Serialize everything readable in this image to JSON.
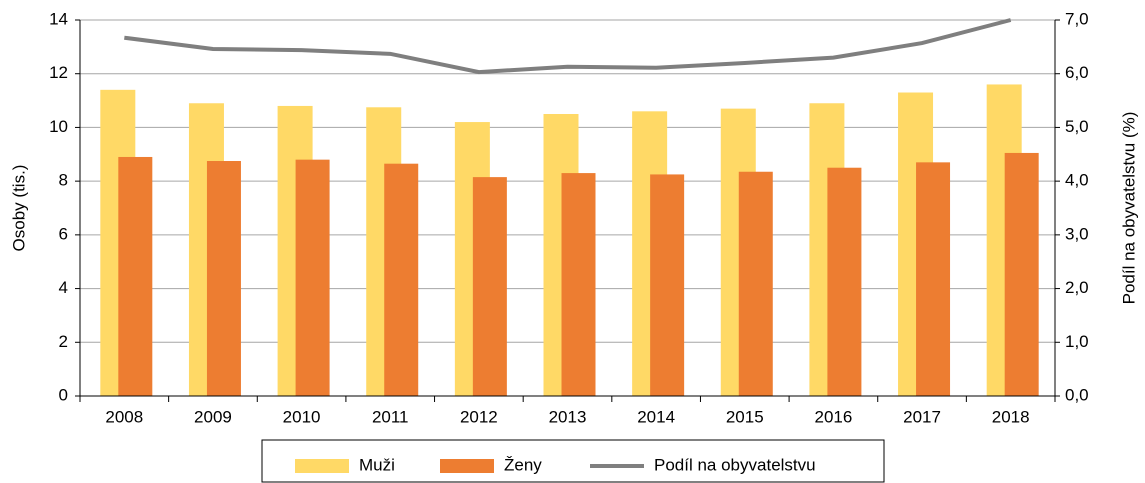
{
  "chart_data": {
    "type": "bar-line",
    "categories": [
      "2008",
      "2009",
      "2010",
      "2011",
      "2012",
      "2013",
      "2014",
      "2015",
      "2016",
      "2017",
      "2018"
    ],
    "series": [
      {
        "name": "Muži",
        "color": "#ffd966",
        "values": [
          11.4,
          10.9,
          10.8,
          10.75,
          10.2,
          10.5,
          10.6,
          10.7,
          10.9,
          11.3,
          11.6
        ]
      },
      {
        "name": "Ženy",
        "color": "#ed7d31",
        "values": [
          8.9,
          8.75,
          8.8,
          8.65,
          8.15,
          8.3,
          8.25,
          8.35,
          8.5,
          8.7,
          9.05
        ]
      },
      {
        "name": "Podíl na obyvatelstvu",
        "color": "#7f7f7f",
        "axis": "y2",
        "values": [
          6.67,
          6.46,
          6.44,
          6.37,
          6.03,
          6.13,
          6.11,
          6.2,
          6.3,
          6.57,
          7.0
        ]
      }
    ],
    "ylabel": "Osoby (tis.)",
    "y2label": "Podíl na obyvatelstvu (%)",
    "ylim": [
      0,
      14
    ],
    "yticks": [
      0,
      2,
      4,
      6,
      8,
      10,
      12,
      14
    ],
    "y2lim": [
      0,
      7
    ],
    "y2ticks": [
      {
        "value": 0,
        "label": "0,0"
      },
      {
        "value": 1,
        "label": "1,0"
      },
      {
        "value": 2,
        "label": "2,0"
      },
      {
        "value": 3,
        "label": "3,0"
      },
      {
        "value": 4,
        "label": "4,0"
      },
      {
        "value": 5,
        "label": "5,0"
      },
      {
        "value": 6,
        "label": "6,0"
      },
      {
        "value": 7,
        "label": "7,0"
      }
    ],
    "grid": true,
    "legend": "bottom"
  }
}
